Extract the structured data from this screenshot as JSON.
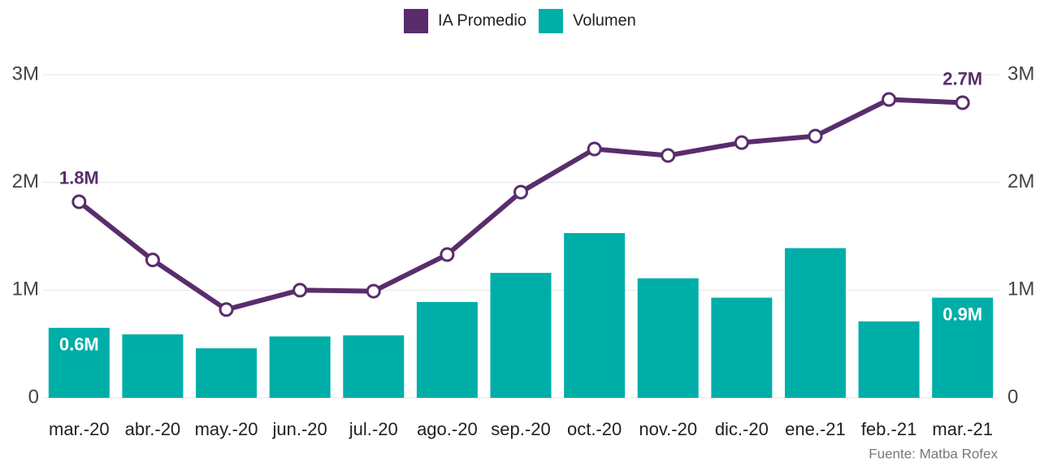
{
  "chart_data": {
    "type": "bar",
    "categories": [
      "mar.-20",
      "abr.-20",
      "may.-20",
      "jun.-20",
      "jul.-20",
      "ago.-20",
      "sep.-20",
      "oct.-20",
      "nov.-20",
      "dic.-20",
      "ene.-21",
      "feb.-21",
      "mar.-21"
    ],
    "series": [
      {
        "name": "IA Promedio",
        "type": "line",
        "color": "#592d6c",
        "values": [
          1820000,
          1280000,
          820000,
          1000000,
          990000,
          1330000,
          1910000,
          2310000,
          2250000,
          2370000,
          2430000,
          2770000,
          2740000
        ],
        "value_labels": [
          "1.8M",
          null,
          null,
          null,
          null,
          null,
          null,
          null,
          null,
          null,
          null,
          null,
          "2.7M"
        ]
      },
      {
        "name": "Volumen",
        "type": "bar",
        "axis": "y2",
        "color": "#00aea8",
        "values": [
          650000,
          590000,
          460000,
          570000,
          580000,
          890000,
          1160000,
          1530000,
          1110000,
          930000,
          1390000,
          710000,
          930000
        ],
        "value_labels": [
          "0.6M",
          null,
          null,
          null,
          null,
          null,
          null,
          null,
          null,
          null,
          null,
          null,
          "0.9M"
        ]
      }
    ],
    "ylim": [
      0,
      3000000
    ],
    "yticks": [
      0,
      {
        "value": 1000000,
        "label": "1M"
      },
      {
        "value": 2000000,
        "label": "2M"
      },
      {
        "value": 3000000,
        "label": "3M"
      }
    ],
    "y2lim": [
      0,
      3000000
    ],
    "y2ticks": [
      0,
      {
        "value": 1000000,
        "label": "1M"
      },
      {
        "value": 2000000,
        "label": "2M"
      },
      {
        "value": 3000000,
        "label": "3M"
      }
    ],
    "grid": true,
    "legend": "top",
    "source": "Fuente: Matba Rofex"
  }
}
